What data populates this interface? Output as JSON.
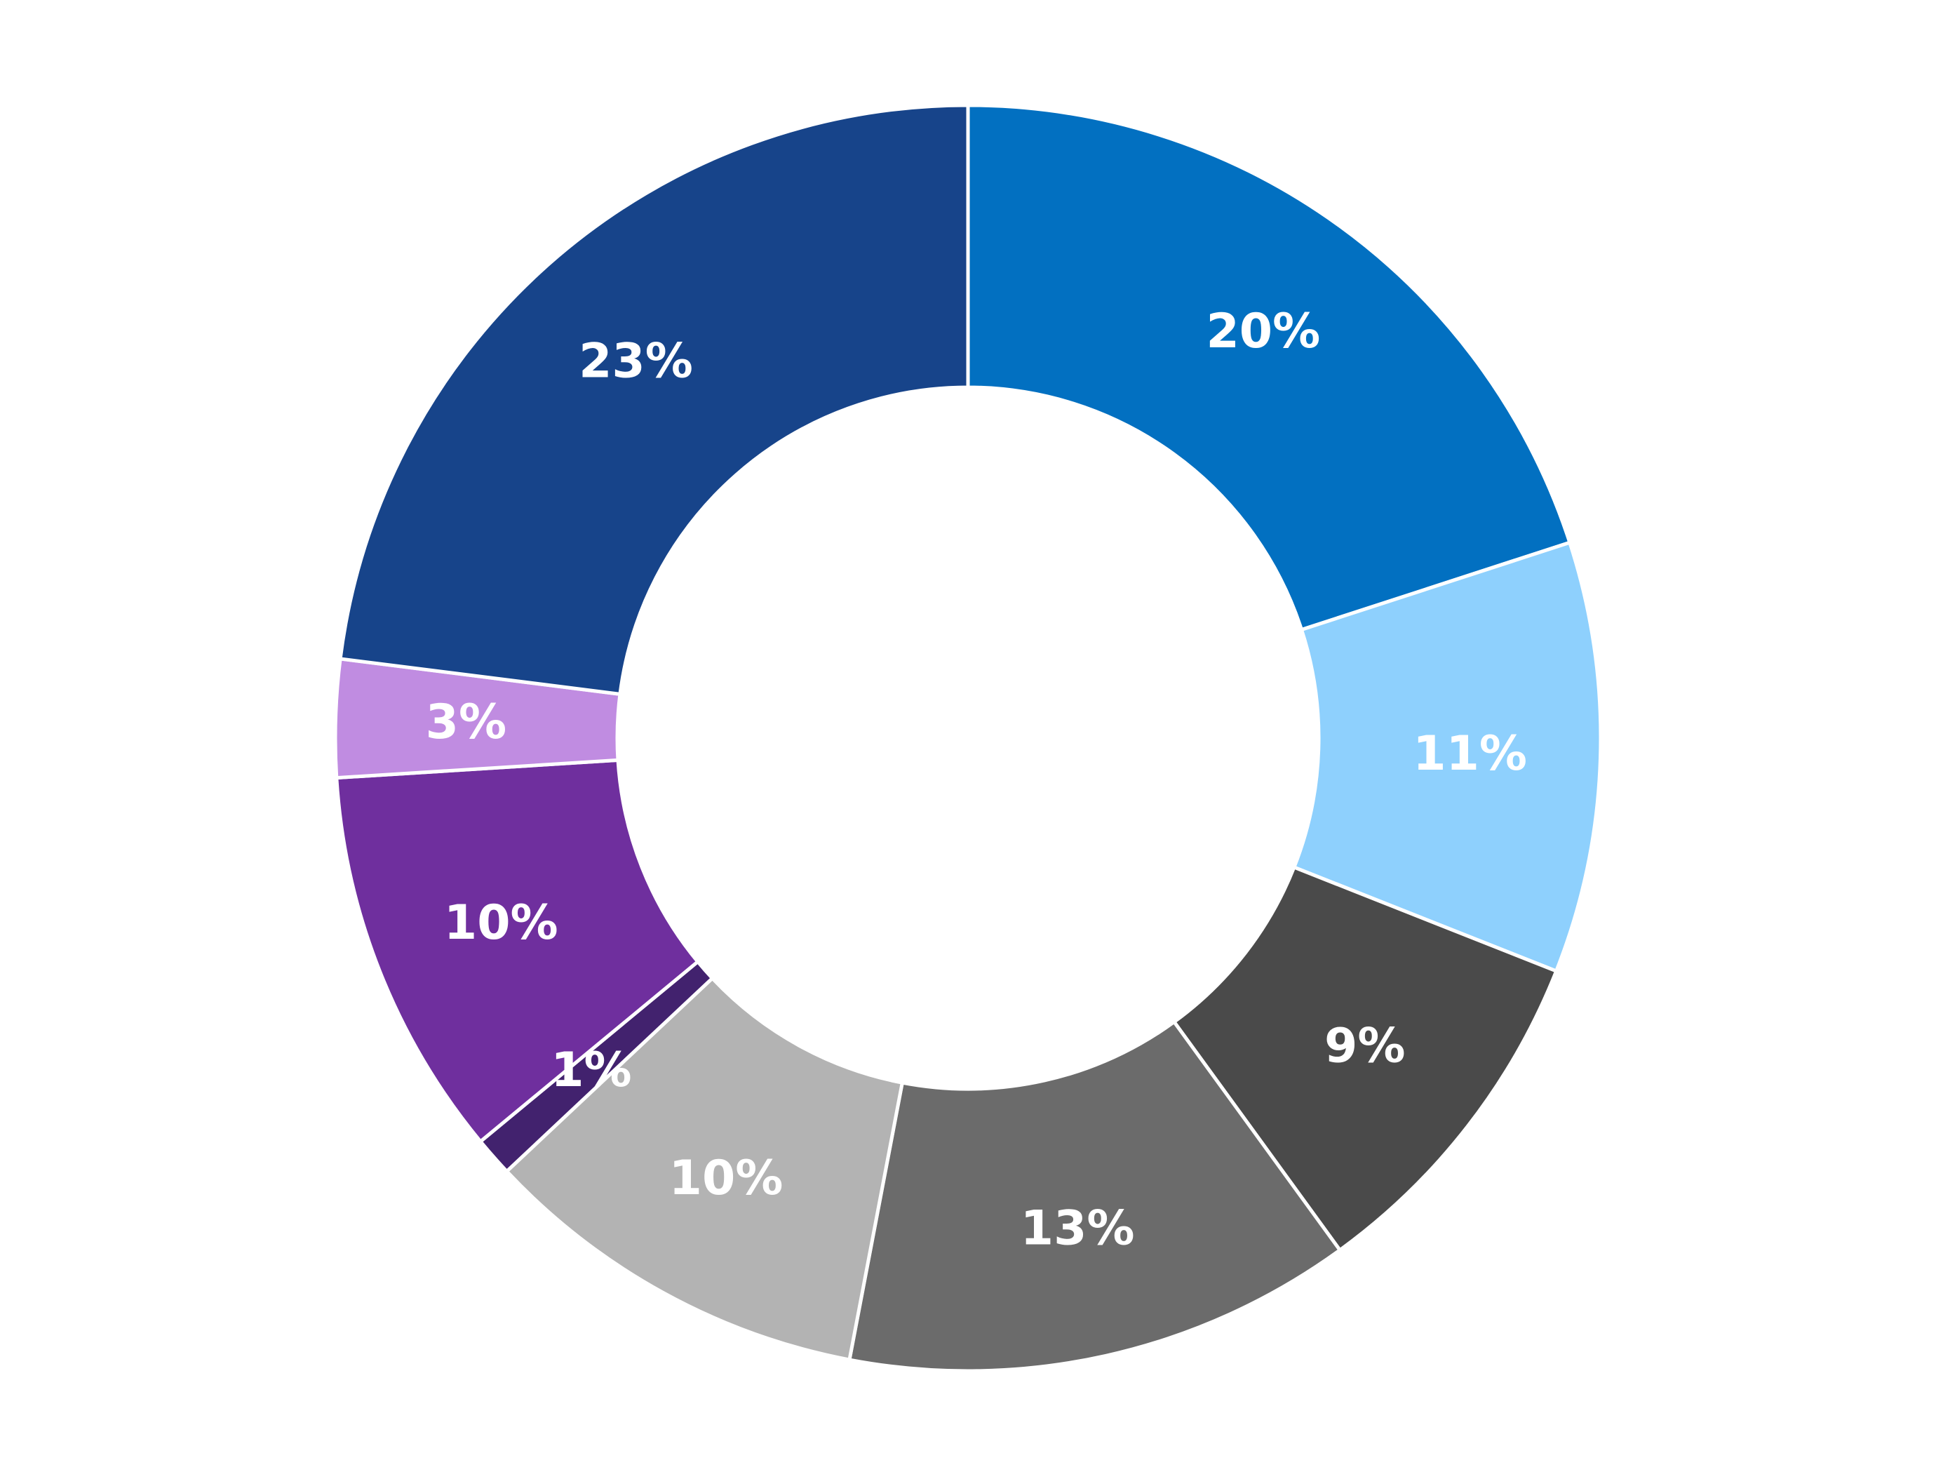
{
  "chart_data": {
    "type": "pie",
    "variant": "donut",
    "title": "",
    "legend": "none",
    "slices": [
      {
        "value": 20,
        "label": "20%",
        "color": "#0270C1"
      },
      {
        "value": 11,
        "label": "11%",
        "color": "#8ED0FD"
      },
      {
        "value": 9,
        "label": "9%",
        "color": "#4A4A4A"
      },
      {
        "value": 13,
        "label": "13%",
        "color": "#6B6B6B"
      },
      {
        "value": 10,
        "label": "10%",
        "color": "#B3B3B3"
      },
      {
        "value": 1,
        "label": "1%",
        "color": "#42226E"
      },
      {
        "value": 10,
        "label": "10%",
        "color": "#6F2F9E"
      },
      {
        "value": 3,
        "label": "3%",
        "color": "#C08CE1"
      },
      {
        "value": 23,
        "label": "23%",
        "color": "#17448A"
      }
    ],
    "label_color": "#FFFFFF",
    "separator_color": "#FFFFFF"
  }
}
